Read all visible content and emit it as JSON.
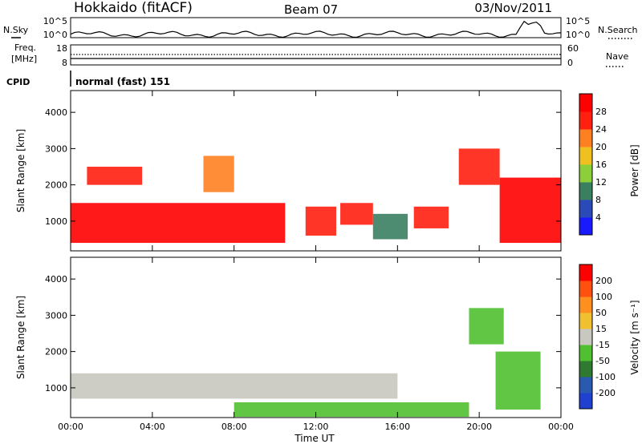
{
  "header": {
    "station": "Hokkaido (fitACF)",
    "beam": "Beam 07",
    "date": "03/Nov/2011"
  },
  "strip_labels": {
    "nsky": "N.Sky",
    "nsearch": "N.Search",
    "freq_line1": "Freq.",
    "freq_line2": "[MHz]",
    "nave": "Nave",
    "cpid": "CPID",
    "cpid_text": "normal (fast) 151",
    "nsky_ticks": [
      "10^5",
      "10^0"
    ],
    "nsearch_ticks": [
      "10^5",
      "10^0"
    ],
    "freq_ticks": [
      "18",
      "8"
    ],
    "nave_ticks": [
      "60",
      "0"
    ]
  },
  "axes": {
    "ylabel": "Slant Range [km]",
    "xlabel": "Time UT",
    "yticks": [
      "1000",
      "2000",
      "3000",
      "4000"
    ],
    "xticks": [
      "00:00",
      "04:00",
      "08:00",
      "12:00",
      "16:00",
      "20:00",
      "00:00"
    ]
  },
  "colorbars": {
    "power": {
      "label": "Power [dB]",
      "ticks": [
        "4",
        "8",
        "12",
        "16",
        "20",
        "24",
        "28"
      ],
      "colors": [
        "#1a1aff",
        "#2a4ab8",
        "#3a7f60",
        "#8ccf3a",
        "#f0c020",
        "#ff8020",
        "#ff2010",
        "#ff0000"
      ]
    },
    "velocity": {
      "label": "Velocity [m s⁻¹]",
      "ticks": [
        "200",
        "100",
        "50",
        "15",
        "-15",
        "-50",
        "-100",
        "-200"
      ],
      "colors": [
        "#2040d0",
        "#2a5ab0",
        "#2f7a30",
        "#50c030",
        "#c8c8c0",
        "#f0c030",
        "#ff9020",
        "#ff5010",
        "#ff0000"
      ]
    }
  },
  "chart_data": [
    {
      "type": "heatmap",
      "title": "",
      "xlabel": "Time UT",
      "ylabel": "Slant Range [km]",
      "xlim": [
        "00:00",
        "24:00"
      ],
      "ylim": [
        180,
        4600
      ],
      "colorbar_label": "Power [dB]",
      "colorbar_range": [
        0,
        30
      ],
      "regions": [
        {
          "t0": 0.0,
          "t1": 10.5,
          "r0": 400,
          "r1": 1500,
          "value": 28
        },
        {
          "t0": 0.8,
          "t1": 3.5,
          "r0": 2000,
          "r1": 2500,
          "value": 24
        },
        {
          "t0": 6.5,
          "t1": 8.0,
          "r0": 1800,
          "r1": 2800,
          "value": 20
        },
        {
          "t0": 11.5,
          "t1": 13.0,
          "r0": 600,
          "r1": 1400,
          "value": 24
        },
        {
          "t0": 13.2,
          "t1": 14.8,
          "r0": 900,
          "r1": 1500,
          "value": 24
        },
        {
          "t0": 14.8,
          "t1": 16.5,
          "r0": 500,
          "r1": 1200,
          "value": 8
        },
        {
          "t0": 16.8,
          "t1": 18.5,
          "r0": 800,
          "r1": 1400,
          "value": 24
        },
        {
          "t0": 19.0,
          "t1": 21.0,
          "r0": 2000,
          "r1": 3000,
          "value": 24
        },
        {
          "t0": 21.0,
          "t1": 24.0,
          "r0": 400,
          "r1": 2200,
          "value": 28
        }
      ]
    },
    {
      "type": "heatmap",
      "title": "",
      "xlabel": "Time UT",
      "ylabel": "Slant Range [km]",
      "xlim": [
        "00:00",
        "24:00"
      ],
      "ylim": [
        180,
        4600
      ],
      "colorbar_label": "Velocity [m s⁻¹]",
      "colorbar_range": [
        -250,
        250
      ],
      "regions": [
        {
          "t0": 0.0,
          "t1": 16.0,
          "r0": 700,
          "r1": 1400,
          "value": 0
        },
        {
          "t0": 8.0,
          "t1": 19.5,
          "r0": 200,
          "r1": 600,
          "value": 30
        },
        {
          "t0": 19.5,
          "t1": 21.2,
          "r0": 2200,
          "r1": 3200,
          "value": 30
        },
        {
          "t0": 20.8,
          "t1": 23.0,
          "r0": 400,
          "r1": 2000,
          "value": 30
        }
      ]
    }
  ]
}
